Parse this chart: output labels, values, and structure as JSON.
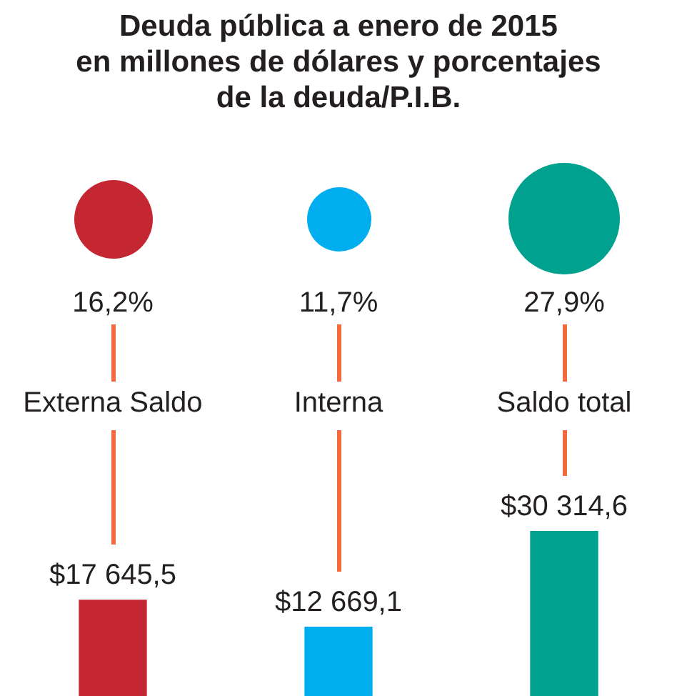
{
  "chart_data": {
    "type": "bar",
    "title": "Deuda pública a enero de 2015\nen millones de dólares y porcentajes\nde la deuda/P.I.B.",
    "categories": [
      "Externa Saldo",
      "Interna",
      "Saldo total"
    ],
    "colors": [
      "#c42632",
      "#00aeef",
      "#00a28f"
    ],
    "values": [
      17645.5,
      12669.1,
      30314.6
    ],
    "value_labels": [
      "$17 645,5",
      "$12 669,1",
      "$30 314,6"
    ],
    "annotations": [
      "16,2%",
      "11,7%",
      "27,9%"
    ],
    "tick_labels": false,
    "grid": false,
    "legend": false
  }
}
